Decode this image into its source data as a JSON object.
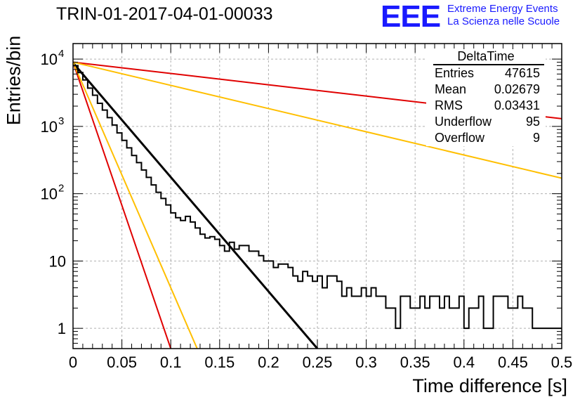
{
  "title": "TRIN-01-2017-04-01-00033",
  "logo": {
    "mark": "EEE",
    "line1": "Extreme Energy Events",
    "line2": "La Scienza nelle Scuole"
  },
  "stats": {
    "header": "DeltaTime",
    "rows": [
      {
        "label": "Entries",
        "value": "47615"
      },
      {
        "label": "Mean",
        "value": "0.02679"
      },
      {
        "label": "RMS",
        "value": "0.03431"
      },
      {
        "label": "Underflow",
        "value": "95"
      },
      {
        "label": "Overflow",
        "value": "9"
      }
    ]
  },
  "colors": {
    "histogram": "#000000",
    "fit": "#000000",
    "red": "#e00000",
    "orange": "#ffbf00",
    "grid": "#b0b0b0"
  },
  "chart_data": {
    "type": "line",
    "xlabel": "Time difference [s]",
    "ylabel": "Entries/bin",
    "xlim": [
      0,
      0.5
    ],
    "ylim": [
      0.5,
      17000
    ],
    "yscale": "log",
    "grid": true,
    "xticks": [
      "0",
      "0.05",
      "0.1",
      "0.15",
      "0.2",
      "0.25",
      "0.3",
      "0.35",
      "0.4",
      "0.45",
      "0.5"
    ],
    "yticks": [
      {
        "value": 1,
        "base": "1",
        "exp": ""
      },
      {
        "value": 10,
        "base": "10",
        "exp": ""
      },
      {
        "value": 100,
        "base": "10",
        "exp": "2"
      },
      {
        "value": 1000,
        "base": "10",
        "exp": "3"
      },
      {
        "value": 10000,
        "base": "10",
        "exp": "4"
      }
    ],
    "histogram": {
      "bin_width": 0.005,
      "bin_start": 0,
      "values": [
        8000,
        6300,
        4900,
        3700,
        2900,
        2200,
        1750,
        1350,
        1050,
        800,
        620,
        480,
        370,
        290,
        225,
        175,
        135,
        105,
        85,
        68,
        52,
        44,
        40,
        46,
        38,
        31,
        25,
        22,
        23,
        21,
        17,
        14,
        19,
        15,
        17,
        17,
        14,
        14,
        12,
        10,
        10,
        8,
        9,
        9,
        8,
        6,
        5,
        7,
        6,
        5,
        6,
        4,
        6,
        6,
        5,
        3,
        4,
        3,
        3,
        4,
        3,
        4,
        3,
        3,
        2,
        2,
        1,
        3,
        3,
        2,
        2,
        3,
        2,
        3,
        3,
        2,
        3,
        2,
        2,
        3,
        1,
        2,
        2,
        3,
        1,
        1,
        3,
        3,
        3,
        2,
        2,
        3,
        2,
        2,
        1,
        1,
        1,
        1,
        1,
        1
      ]
    },
    "series": [
      {
        "color": "#000000",
        "x": [
          0,
          0.25
        ],
        "y": [
          8800,
          0.5
        ]
      },
      {
        "color": "#e00000",
        "x": [
          0,
          0.1
        ],
        "y": [
          9000,
          0.5
        ]
      },
      {
        "color": "#ffbf00",
        "x": [
          0,
          0.127
        ],
        "y": [
          9000,
          0.5
        ]
      },
      {
        "color": "#e00000",
        "x": [
          0,
          0.5
        ],
        "y": [
          9000,
          1300
        ]
      },
      {
        "color": "#ffbf00",
        "x": [
          0,
          0.5
        ],
        "y": [
          9000,
          170
        ]
      }
    ]
  }
}
